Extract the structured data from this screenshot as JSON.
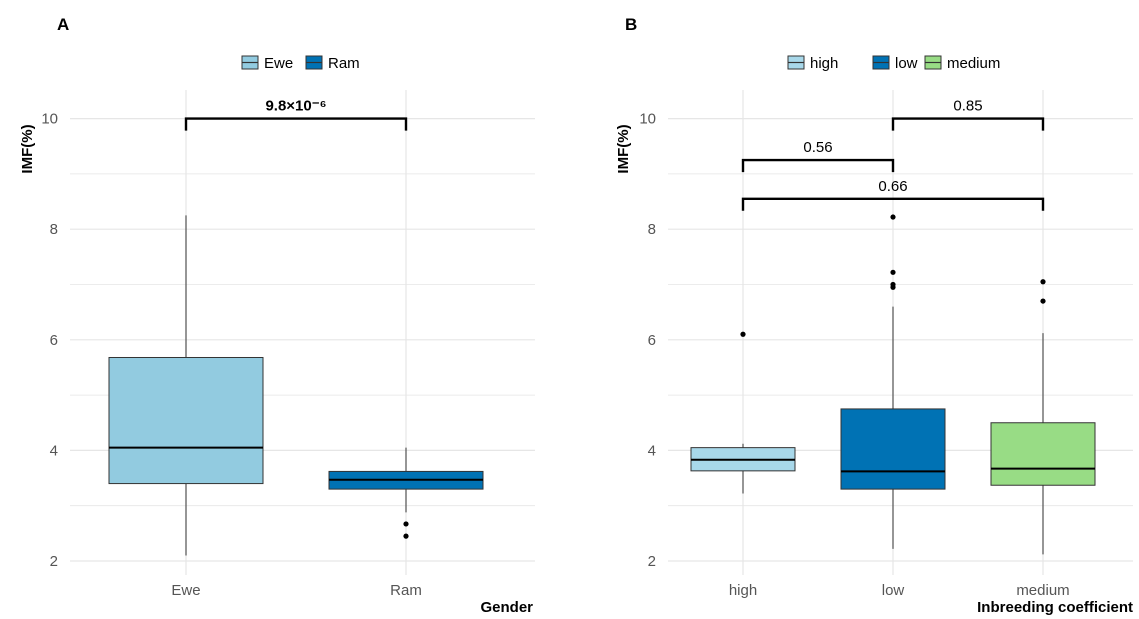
{
  "chart_data": [
    {
      "panel": "A",
      "type": "box",
      "xlabel": "Gender",
      "ylabel": "IMF(%)",
      "ylim": [
        2,
        10.5
      ],
      "yticks": [
        2,
        4,
        6,
        8,
        10
      ],
      "grid": true,
      "legend_position": "top",
      "legend": [
        {
          "name": "Ewe",
          "color": "#92CBE0"
        },
        {
          "name": "Ram",
          "color": "#0072B4"
        }
      ],
      "categories": [
        "Ewe",
        "Ram"
      ],
      "boxes": [
        {
          "category": "Ewe",
          "color": "#92CBE0",
          "whisker_low": 2.1,
          "q1": 3.4,
          "median": 4.05,
          "q3": 5.68,
          "whisker_high": 8.25,
          "outliers": []
        },
        {
          "category": "Ram",
          "color": "#0072B4",
          "whisker_low": 2.88,
          "q1": 3.3,
          "median": 3.47,
          "q3": 3.62,
          "whisker_high": 4.05,
          "outliers": [
            2.67,
            2.45
          ]
        }
      ],
      "comparisons": [
        {
          "from": "Ewe",
          "to": "Ram",
          "label": "9.8×10⁻⁶",
          "y": 10.0,
          "bold": true
        }
      ]
    },
    {
      "panel": "B",
      "type": "box",
      "xlabel": "Inbreeding coefficient",
      "ylabel": "IMF(%)",
      "ylim": [
        2,
        10.5
      ],
      "yticks": [
        2,
        4,
        6,
        8,
        10
      ],
      "grid": true,
      "legend_position": "top",
      "legend": [
        {
          "name": "high",
          "color": "#A8D8EA"
        },
        {
          "name": "low",
          "color": "#0072B4"
        },
        {
          "name": "medium",
          "color": "#98DC85"
        }
      ],
      "categories": [
        "high",
        "low",
        "medium"
      ],
      "boxes": [
        {
          "category": "high",
          "color": "#A8D8EA",
          "whisker_low": 3.22,
          "q1": 3.63,
          "median": 3.83,
          "q3": 4.05,
          "whisker_high": 4.12,
          "outliers": [
            6.1
          ]
        },
        {
          "category": "low",
          "color": "#0072B4",
          "whisker_low": 2.22,
          "q1": 3.3,
          "median": 3.62,
          "q3": 4.75,
          "whisker_high": 6.6,
          "outliers": [
            7.0,
            6.95,
            7.22,
            8.22
          ]
        },
        {
          "category": "medium",
          "color": "#98DC85",
          "whisker_low": 2.12,
          "q1": 3.37,
          "median": 3.67,
          "q3": 4.5,
          "whisker_high": 6.12,
          "outliers": [
            6.7,
            7.05
          ]
        }
      ],
      "comparisons": [
        {
          "from": "low",
          "to": "medium",
          "label": "0.85",
          "y": 10.0,
          "bold": false
        },
        {
          "from": "high",
          "to": "low",
          "label": "0.56",
          "y": 9.25,
          "bold": false
        },
        {
          "from": "high",
          "to": "medium",
          "label": "0.66",
          "y": 8.55,
          "bold": false
        }
      ]
    }
  ]
}
